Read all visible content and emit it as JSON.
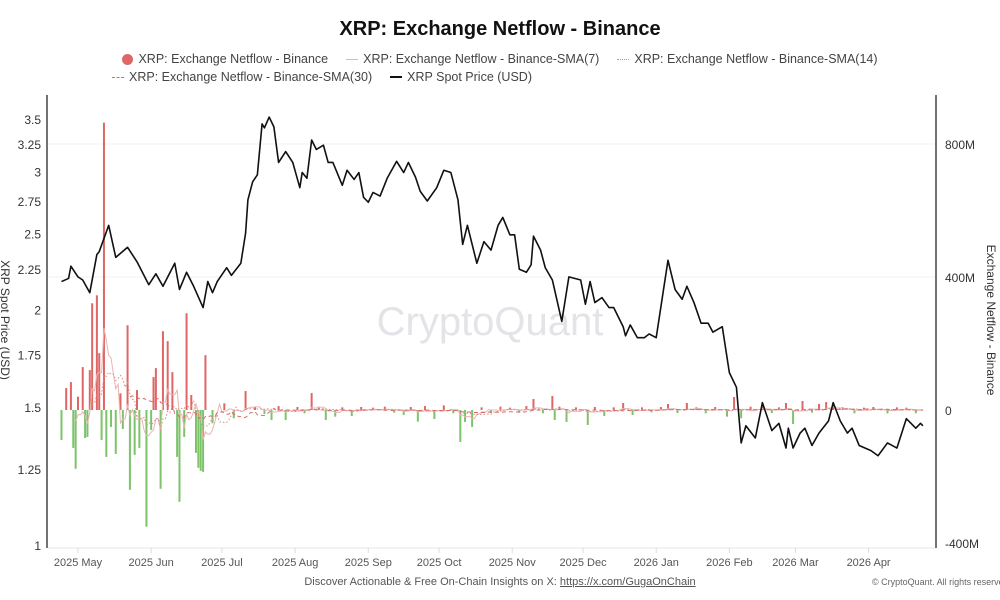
{
  "chart_data": {
    "type": "bar+line",
    "title": "XRP: Exchange Netflow - Binance",
    "legend": [
      {
        "label": "XRP: Exchange Netflow - Binance",
        "color": "#e06666",
        "style": "dot"
      },
      {
        "label": "XRP: Exchange Netflow - Binance-SMA(7)",
        "color": "#e8b4b4",
        "style": "solid"
      },
      {
        "label": "XRP: Exchange Netflow - Binance-SMA(14)",
        "color": "#e08888",
        "style": "dotted"
      },
      {
        "label": "XRP: Exchange Netflow - Binance-SMA(30)",
        "color": "#d96b6b",
        "style": "dashed"
      },
      {
        "label": "XRP Spot Price (USD)",
        "color": "#111111",
        "style": "solid"
      }
    ],
    "legend_placement": "top",
    "left_axis": {
      "label": "XRP Spot Price (USD)",
      "scale": "log",
      "range": [
        1,
        3.6
      ],
      "ticks": [
        "1",
        "1.25",
        "1.5",
        "1.75",
        "2",
        "2.25",
        "2.5",
        "2.75",
        "3",
        "3.25",
        "3.5"
      ]
    },
    "right_axis": {
      "label": "Exchange Netflow - Binance",
      "unit": "M",
      "range": [
        -400,
        900
      ],
      "ticks": [
        {
          "v": -400,
          "label": "-400M"
        },
        {
          "v": 0,
          "label": "0"
        },
        {
          "v": 400,
          "label": "400M"
        },
        {
          "v": 800,
          "label": "800M"
        }
      ]
    },
    "x_axis": {
      "range": [
        "2025-04-24",
        "2026-04-24"
      ],
      "ticks": [
        {
          "date": "2025-05-01",
          "label": "2025 May"
        },
        {
          "date": "2025-06-01",
          "label": "2025 Jun"
        },
        {
          "date": "2025-07-01",
          "label": "2025 Jul"
        },
        {
          "date": "2025-08-01",
          "label": "2025 Aug"
        },
        {
          "date": "2025-09-01",
          "label": "2025 Sep"
        },
        {
          "date": "2025-10-01",
          "label": "2025 Oct"
        },
        {
          "date": "2025-11-01",
          "label": "2025 Nov"
        },
        {
          "date": "2025-12-01",
          "label": "2025 Dec"
        },
        {
          "date": "2026-01-01",
          "label": "2026 Jan"
        },
        {
          "date": "2026-02-01",
          "label": "2026 Feb"
        },
        {
          "date": "2026-03-01",
          "label": "2026 Mar"
        },
        {
          "date": "2026-04-01",
          "label": "2026 Apr"
        }
      ]
    },
    "grid": "horizontal at right-axis ticks",
    "colors": {
      "positive": "#e06666",
      "negative": "#7cc36a",
      "price": "#111111"
    },
    "price_series": [
      [
        "2025-04-24",
        2.17
      ],
      [
        "2025-04-27",
        2.19
      ],
      [
        "2025-04-28",
        2.27
      ],
      [
        "2025-05-01",
        2.2
      ],
      [
        "2025-05-03",
        2.18
      ],
      [
        "2025-05-06",
        2.1
      ],
      [
        "2025-05-09",
        2.35
      ],
      [
        "2025-05-10",
        2.37
      ],
      [
        "2025-05-14",
        2.56
      ],
      [
        "2025-05-17",
        2.33
      ],
      [
        "2025-05-22",
        2.4
      ],
      [
        "2025-05-26",
        2.3
      ],
      [
        "2025-05-31",
        2.15
      ],
      [
        "2025-06-03",
        2.22
      ],
      [
        "2025-06-06",
        2.14
      ],
      [
        "2025-06-11",
        2.29
      ],
      [
        "2025-06-13",
        2.12
      ],
      [
        "2025-06-16",
        2.23
      ],
      [
        "2025-06-19",
        2.14
      ],
      [
        "2025-06-23",
        2.01
      ],
      [
        "2025-06-25",
        2.17
      ],
      [
        "2025-06-27",
        2.1
      ],
      [
        "2025-06-29",
        2.17
      ],
      [
        "2025-07-03",
        2.26
      ],
      [
        "2025-07-05",
        2.21
      ],
      [
        "2025-07-09",
        2.29
      ],
      [
        "2025-07-11",
        2.5
      ],
      [
        "2025-07-12",
        2.76
      ],
      [
        "2025-07-14",
        2.91
      ],
      [
        "2025-07-16",
        2.97
      ],
      [
        "2025-07-18",
        3.45
      ],
      [
        "2025-07-19",
        3.41
      ],
      [
        "2025-07-21",
        3.52
      ],
      [
        "2025-07-23",
        3.42
      ],
      [
        "2025-07-25",
        3.08
      ],
      [
        "2025-07-28",
        3.18
      ],
      [
        "2025-07-31",
        3.08
      ],
      [
        "2025-08-03",
        2.86
      ],
      [
        "2025-08-04",
        2.99
      ],
      [
        "2025-08-06",
        2.94
      ],
      [
        "2025-08-08",
        3.29
      ],
      [
        "2025-08-10",
        3.2
      ],
      [
        "2025-08-13",
        3.24
      ],
      [
        "2025-08-15",
        3.08
      ],
      [
        "2025-08-17",
        3.08
      ],
      [
        "2025-08-21",
        2.88
      ],
      [
        "2025-08-23",
        3.01
      ],
      [
        "2025-08-26",
        2.93
      ],
      [
        "2025-08-28",
        2.99
      ],
      [
        "2025-08-30",
        2.78
      ],
      [
        "2025-09-01",
        2.74
      ],
      [
        "2025-09-03",
        2.82
      ],
      [
        "2025-09-06",
        2.79
      ],
      [
        "2025-09-09",
        2.94
      ],
      [
        "2025-09-13",
        3.09
      ],
      [
        "2025-09-16",
        2.99
      ],
      [
        "2025-09-18",
        3.08
      ],
      [
        "2025-09-21",
        2.95
      ],
      [
        "2025-09-23",
        2.83
      ],
      [
        "2025-09-26",
        2.75
      ],
      [
        "2025-09-30",
        2.86
      ],
      [
        "2025-10-03",
        3.01
      ],
      [
        "2025-10-06",
        2.99
      ],
      [
        "2025-10-09",
        2.76
      ],
      [
        "2025-10-11",
        2.42
      ],
      [
        "2025-10-13",
        2.56
      ],
      [
        "2025-10-17",
        2.29
      ],
      [
        "2025-10-20",
        2.44
      ],
      [
        "2025-10-23",
        2.38
      ],
      [
        "2025-10-26",
        2.56
      ],
      [
        "2025-10-28",
        2.62
      ],
      [
        "2025-10-31",
        2.49
      ],
      [
        "2025-11-02",
        2.49
      ],
      [
        "2025-11-04",
        2.25
      ],
      [
        "2025-11-07",
        2.23
      ],
      [
        "2025-11-09",
        2.28
      ],
      [
        "2025-11-10",
        2.48
      ],
      [
        "2025-11-13",
        2.38
      ],
      [
        "2025-11-15",
        2.26
      ],
      [
        "2025-11-18",
        2.18
      ],
      [
        "2025-11-22",
        1.93
      ],
      [
        "2025-11-25",
        2.2
      ],
      [
        "2025-11-30",
        2.18
      ],
      [
        "2025-12-02",
        2.03
      ],
      [
        "2025-12-04",
        2.17
      ],
      [
        "2025-12-06",
        2.04
      ],
      [
        "2025-12-09",
        2.07
      ],
      [
        "2025-12-12",
        2.01
      ],
      [
        "2025-12-14",
        2.01
      ],
      [
        "2025-12-18",
        1.9
      ],
      [
        "2025-12-19",
        1.85
      ],
      [
        "2025-12-21",
        1.91
      ],
      [
        "2025-12-24",
        1.84
      ],
      [
        "2025-12-27",
        1.84
      ],
      [
        "2025-12-29",
        1.86
      ],
      [
        "2026-01-01",
        1.84
      ],
      [
        "2026-01-06",
        2.31
      ],
      [
        "2026-01-09",
        2.12
      ],
      [
        "2026-01-12",
        2.06
      ],
      [
        "2026-01-14",
        2.14
      ],
      [
        "2026-01-17",
        2.04
      ],
      [
        "2026-01-20",
        1.92
      ],
      [
        "2026-01-23",
        1.92
      ],
      [
        "2026-01-25",
        1.87
      ],
      [
        "2026-01-29",
        1.9
      ],
      [
        "2026-02-01",
        1.66
      ],
      [
        "2026-02-04",
        1.59
      ],
      [
        "2026-02-06",
        1.35
      ],
      [
        "2026-02-08",
        1.42
      ],
      [
        "2026-02-12",
        1.37
      ],
      [
        "2026-02-15",
        1.52
      ],
      [
        "2026-02-19",
        1.4
      ],
      [
        "2026-02-22",
        1.43
      ],
      [
        "2026-02-25",
        1.33
      ],
      [
        "2026-02-26",
        1.41
      ],
      [
        "2026-02-28",
        1.33
      ],
      [
        "2026-03-03",
        1.39
      ],
      [
        "2026-03-05",
        1.41
      ],
      [
        "2026-03-08",
        1.34
      ],
      [
        "2026-03-11",
        1.39
      ],
      [
        "2026-03-15",
        1.44
      ],
      [
        "2026-03-17",
        1.52
      ],
      [
        "2026-03-20",
        1.44
      ],
      [
        "2026-03-23",
        1.39
      ],
      [
        "2026-03-25",
        1.41
      ],
      [
        "2026-03-28",
        1.34
      ],
      [
        "2026-04-02",
        1.32
      ],
      [
        "2026-04-05",
        1.3
      ],
      [
        "2026-04-09",
        1.35
      ],
      [
        "2026-04-13",
        1.33
      ],
      [
        "2026-04-17",
        1.45
      ],
      [
        "2026-04-21",
        1.41
      ],
      [
        "2026-04-23",
        1.43
      ],
      [
        "2026-04-24",
        1.42
      ]
    ],
    "netflow_series_M": [
      [
        "2025-04-24",
        -90
      ],
      [
        "2025-04-26",
        66
      ],
      [
        "2025-04-28",
        84
      ],
      [
        "2025-04-29",
        -114
      ],
      [
        "2025-04-30",
        -177
      ],
      [
        "2025-05-01",
        40
      ],
      [
        "2025-05-03",
        129
      ],
      [
        "2025-05-04",
        -84
      ],
      [
        "2025-05-05",
        -81
      ],
      [
        "2025-05-06",
        120
      ],
      [
        "2025-05-07",
        321
      ],
      [
        "2025-05-09",
        345
      ],
      [
        "2025-05-10",
        171
      ],
      [
        "2025-05-11",
        -90
      ],
      [
        "2025-05-12",
        864
      ],
      [
        "2025-05-13",
        -141
      ],
      [
        "2025-05-15",
        -51
      ],
      [
        "2025-05-17",
        -132
      ],
      [
        "2025-05-19",
        50
      ],
      [
        "2025-05-20",
        -57
      ],
      [
        "2025-05-22",
        255
      ],
      [
        "2025-05-23",
        -240
      ],
      [
        "2025-05-25",
        -135
      ],
      [
        "2025-05-26",
        60
      ],
      [
        "2025-05-27",
        -114
      ],
      [
        "2025-05-30",
        -351
      ],
      [
        "2025-06-01",
        -60
      ],
      [
        "2025-06-02",
        99
      ],
      [
        "2025-06-03",
        126
      ],
      [
        "2025-06-05",
        -237
      ],
      [
        "2025-06-06",
        237
      ],
      [
        "2025-06-08",
        207
      ],
      [
        "2025-06-10",
        114
      ],
      [
        "2025-06-12",
        -141
      ],
      [
        "2025-06-13",
        -276
      ],
      [
        "2025-06-15",
        -81
      ],
      [
        "2025-06-16",
        291
      ],
      [
        "2025-06-18",
        45
      ],
      [
        "2025-06-20",
        -129
      ],
      [
        "2025-06-21",
        -174
      ],
      [
        "2025-06-22",
        -183
      ],
      [
        "2025-06-23",
        -186
      ],
      [
        "2025-06-24",
        165
      ],
      [
        "2025-06-27",
        -40
      ],
      [
        "2025-07-02",
        20
      ],
      [
        "2025-07-06",
        -25
      ],
      [
        "2025-07-11",
        57
      ],
      [
        "2025-07-15",
        10
      ],
      [
        "2025-07-19",
        -12
      ],
      [
        "2025-07-22",
        -30
      ],
      [
        "2025-07-25",
        12
      ],
      [
        "2025-07-28",
        -30
      ],
      [
        "2025-08-02",
        9
      ],
      [
        "2025-08-05",
        -10
      ],
      [
        "2025-08-08",
        51
      ],
      [
        "2025-08-11",
        10
      ],
      [
        "2025-08-14",
        -30
      ],
      [
        "2025-08-18",
        -20
      ],
      [
        "2025-08-21",
        8
      ],
      [
        "2025-08-25",
        -18
      ],
      [
        "2025-08-29",
        9
      ],
      [
        "2025-09-03",
        7
      ],
      [
        "2025-09-08",
        10
      ],
      [
        "2025-09-12",
        -8
      ],
      [
        "2025-09-16",
        -15
      ],
      [
        "2025-09-19",
        9
      ],
      [
        "2025-09-22",
        -35
      ],
      [
        "2025-09-25",
        12
      ],
      [
        "2025-09-29",
        -27
      ],
      [
        "2025-10-03",
        14
      ],
      [
        "2025-10-07",
        -10
      ],
      [
        "2025-10-10",
        -96
      ],
      [
        "2025-10-12",
        -36
      ],
      [
        "2025-10-15",
        -51
      ],
      [
        "2025-10-19",
        8
      ],
      [
        "2025-10-23",
        -9
      ],
      [
        "2025-10-27",
        10
      ],
      [
        "2025-10-31",
        7
      ],
      [
        "2025-11-04",
        -8
      ],
      [
        "2025-11-07",
        12
      ],
      [
        "2025-11-10",
        33
      ],
      [
        "2025-11-14",
        -10
      ],
      [
        "2025-11-18",
        42
      ],
      [
        "2025-11-19",
        -30
      ],
      [
        "2025-11-21",
        10
      ],
      [
        "2025-11-24",
        -36
      ],
      [
        "2025-11-28",
        8
      ],
      [
        "2025-12-03",
        -45
      ],
      [
        "2025-12-06",
        9
      ],
      [
        "2025-12-10",
        -18
      ],
      [
        "2025-12-14",
        8
      ],
      [
        "2025-12-18",
        21
      ],
      [
        "2025-12-22",
        -15
      ],
      [
        "2025-12-26",
        8
      ],
      [
        "2025-12-30",
        -7
      ],
      [
        "2026-01-03",
        9
      ],
      [
        "2026-01-06",
        18
      ],
      [
        "2026-01-10",
        -9
      ],
      [
        "2026-01-14",
        21
      ],
      [
        "2026-01-18",
        8
      ],
      [
        "2026-01-22",
        -10
      ],
      [
        "2026-01-26",
        9
      ],
      [
        "2026-01-31",
        -20
      ],
      [
        "2026-02-03",
        39
      ],
      [
        "2026-02-06",
        -25
      ],
      [
        "2026-02-10",
        10
      ],
      [
        "2026-02-15",
        21
      ],
      [
        "2026-02-19",
        -9
      ],
      [
        "2026-02-22",
        8
      ],
      [
        "2026-02-25",
        21
      ],
      [
        "2026-02-28",
        -42
      ],
      [
        "2026-03-04",
        27
      ],
      [
        "2026-03-08",
        -8
      ],
      [
        "2026-03-11",
        18
      ],
      [
        "2026-03-14",
        24
      ],
      [
        "2026-03-17",
        20
      ],
      [
        "2026-03-21",
        8
      ],
      [
        "2026-03-26",
        -10
      ],
      [
        "2026-03-30",
        7
      ],
      [
        "2026-04-03",
        9
      ],
      [
        "2026-04-09",
        -10
      ],
      [
        "2026-04-13",
        8
      ],
      [
        "2026-04-17",
        7
      ],
      [
        "2026-04-21",
        -10
      ]
    ],
    "sma_windows": [
      7,
      14,
      30
    ]
  },
  "watermark": "CryptoQuant",
  "footer": {
    "text": "Discover Actionable & Free On-Chain Insights on X: ",
    "link": "https://x.com/GugaOnChain"
  },
  "copyright": "© CryptoQuant. All rights reserved"
}
